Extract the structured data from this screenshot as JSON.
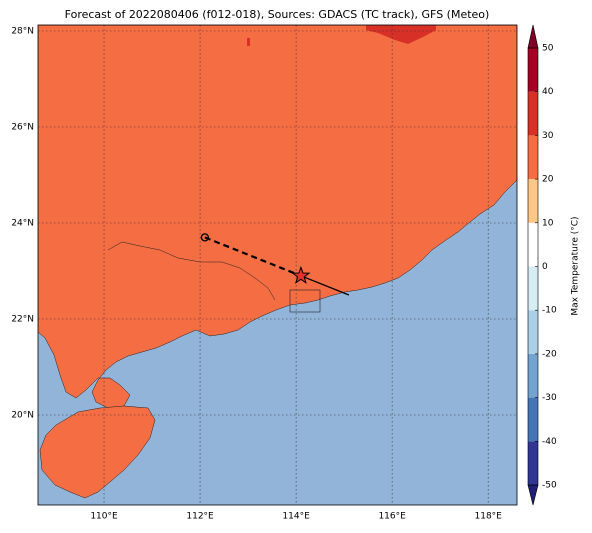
{
  "map": {
    "title": "Forecast of 2022080406 (f012-018), Sources: GDACS (TC track), GFS (Meteo)",
    "xlim": [
      108.625,
      118.6
    ],
    "ylim": [
      18.125,
      28.125
    ],
    "lat_ticks": [
      {
        "value": 20,
        "label": "20°N"
      },
      {
        "value": 22,
        "label": "22°N"
      },
      {
        "value": 24,
        "label": "24°N"
      },
      {
        "value": 26,
        "label": "26°N"
      },
      {
        "value": 28,
        "label": "28°N"
      }
    ],
    "lon_ticks": [
      {
        "value": 110,
        "label": "110°E"
      },
      {
        "value": 112,
        "label": "112°E"
      },
      {
        "value": 114,
        "label": "114°E"
      },
      {
        "value": 116,
        "label": "116°E"
      },
      {
        "value": 118,
        "label": "118°E"
      }
    ],
    "track": {
      "start": [
        112.1,
        23.7
      ],
      "current": [
        114.1,
        22.9
      ],
      "end": [
        115.1,
        22.5
      ]
    }
  },
  "colorbar": {
    "label": "Max Temperature (°C)",
    "lim": [
      -50,
      50
    ],
    "ticks": [
      -50,
      -40,
      -30,
      -20,
      -10,
      0,
      10,
      20,
      30,
      40,
      50
    ],
    "colors": [
      "#313695",
      "#4575b4",
      "#74a3cf",
      "#abd0e6",
      "#d8ecf3",
      "#ffffff",
      "#fdc786",
      "#f46d43",
      "#d73027",
      "#a50026"
    ],
    "under_color": "#1f1f7a",
    "over_color": "#800026"
  }
}
